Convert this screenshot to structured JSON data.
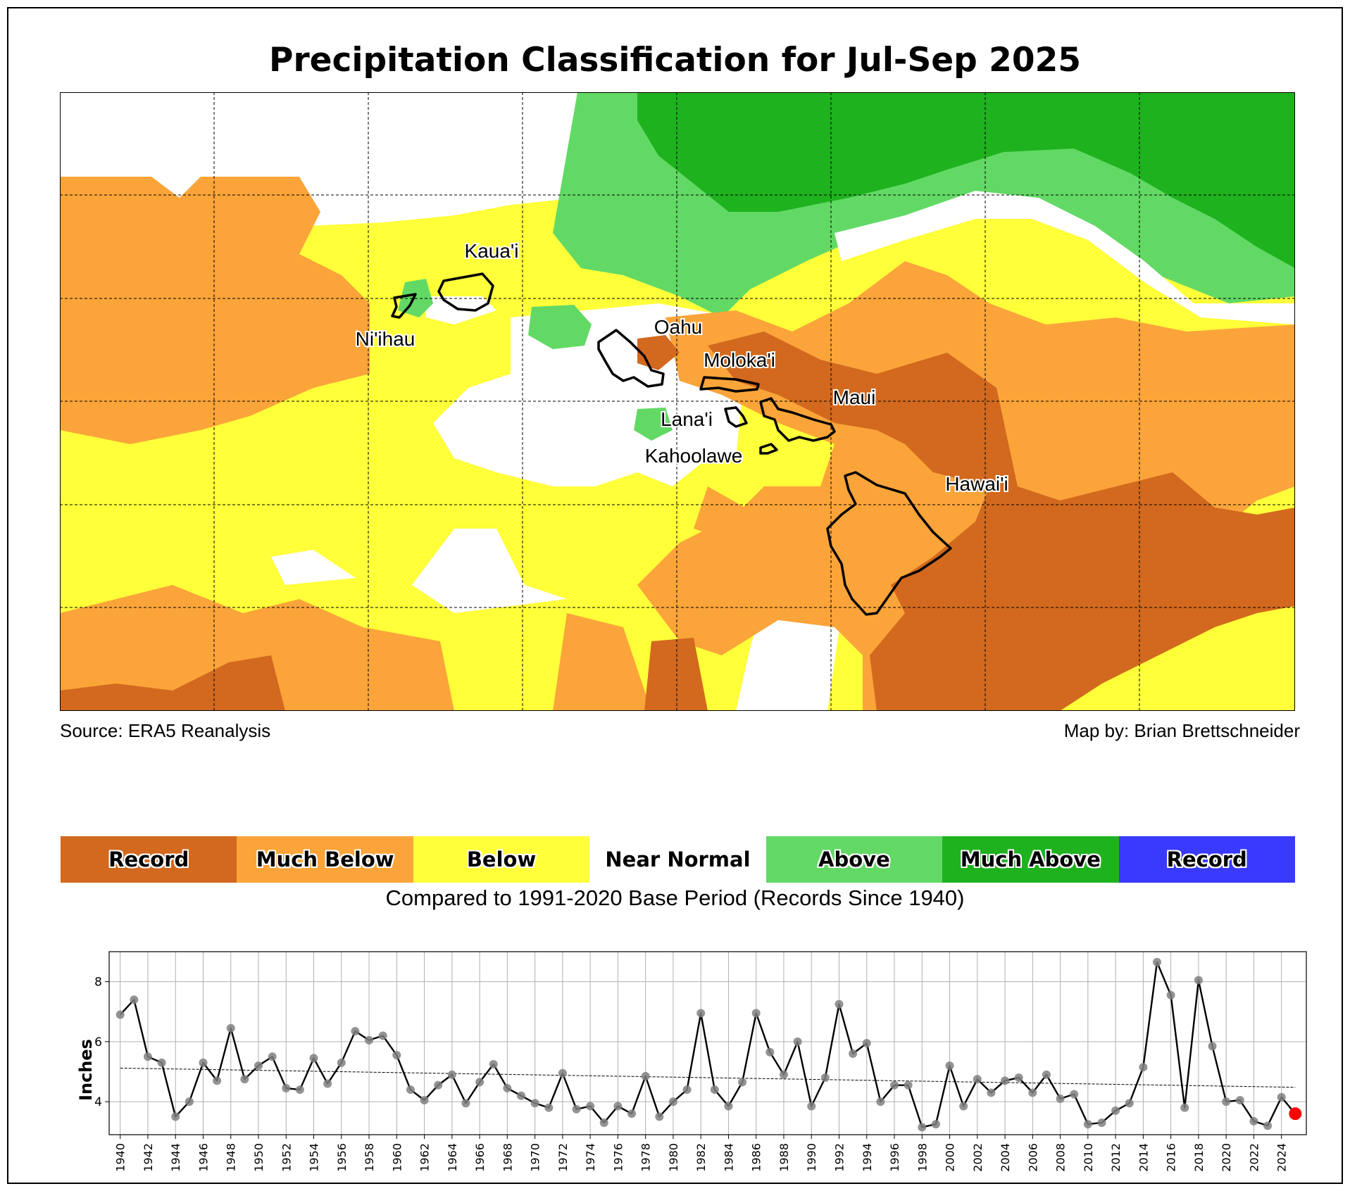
{
  "title": "Precipitation Classification for Jul-Sep 2025",
  "map": {
    "islands": [
      {
        "id": "niihau",
        "label": "Ni'ihau"
      },
      {
        "id": "kauai",
        "label": "Kaua'i"
      },
      {
        "id": "oahu",
        "label": "Oahu"
      },
      {
        "id": "molokai",
        "label": "Moloka'i"
      },
      {
        "id": "maui",
        "label": "Maui"
      },
      {
        "id": "lanai",
        "label": "Lana'i"
      },
      {
        "id": "kahoolawe",
        "label": "Kahoolawe"
      },
      {
        "id": "hawaii",
        "label": "Hawai'i"
      }
    ],
    "class_colors": {
      "record_low": "#d2691e",
      "much_below": "#fba43a",
      "below": "#ffff3a",
      "near_normal": "#ffffff",
      "above": "#62d965",
      "much_above": "#1fb21f",
      "record_high": "#3a3aff"
    }
  },
  "source_left": "Source: ERA5 Reanalysis",
  "source_right": "Map by: Brian Brettschneider",
  "legend": {
    "items": [
      {
        "label": "Record",
        "color": "#d2691e"
      },
      {
        "label": "Much Below",
        "color": "#fba43a"
      },
      {
        "label": "Below",
        "color": "#ffff3a"
      },
      {
        "label": "Near Normal",
        "color": "#ffffff"
      },
      {
        "label": "Above",
        "color": "#62d965"
      },
      {
        "label": "Much Above",
        "color": "#1fb21f"
      },
      {
        "label": "Record",
        "color": "#3a3aff"
      }
    ],
    "caption": "Compared to 1991-2020 Base Period   (Records Since 1940)"
  },
  "chart_data": {
    "type": "line",
    "ylabel": "Inches",
    "xlabel": "",
    "ylim": [
      2.9,
      9.0
    ],
    "yticks": [
      4,
      6,
      8
    ],
    "xticks": [
      1940,
      1942,
      1944,
      1946,
      1948,
      1950,
      1952,
      1954,
      1956,
      1958,
      1960,
      1962,
      1964,
      1966,
      1968,
      1970,
      1972,
      1974,
      1976,
      1978,
      1980,
      1982,
      1984,
      1986,
      1988,
      1990,
      1992,
      1994,
      1996,
      1998,
      2000,
      2002,
      2004,
      2006,
      2008,
      2010,
      2012,
      2014,
      2016,
      2018,
      2020,
      2022,
      2024
    ],
    "grid": true,
    "x": [
      1940,
      1941,
      1942,
      1943,
      1944,
      1945,
      1946,
      1947,
      1948,
      1949,
      1950,
      1951,
      1952,
      1953,
      1954,
      1955,
      1956,
      1957,
      1958,
      1959,
      1960,
      1961,
      1962,
      1963,
      1964,
      1965,
      1966,
      1967,
      1968,
      1969,
      1970,
      1971,
      1972,
      1973,
      1974,
      1975,
      1976,
      1977,
      1978,
      1979,
      1980,
      1981,
      1982,
      1983,
      1984,
      1985,
      1986,
      1987,
      1988,
      1989,
      1990,
      1991,
      1992,
      1993,
      1994,
      1995,
      1996,
      1997,
      1998,
      1999,
      2000,
      2001,
      2002,
      2003,
      2004,
      2005,
      2006,
      2007,
      2008,
      2009,
      2010,
      2011,
      2012,
      2013,
      2014,
      2015,
      2016,
      2017,
      2018,
      2019,
      2020,
      2021,
      2022,
      2023,
      2024,
      2025
    ],
    "series": [
      {
        "values": [
          6.9,
          7.4,
          5.5,
          5.3,
          3.5,
          4.0,
          5.3,
          4.7,
          6.45,
          4.75,
          5.2,
          5.5,
          4.45,
          4.4,
          5.45,
          4.6,
          5.3,
          6.35,
          6.05,
          6.2,
          5.55,
          4.4,
          4.05,
          4.55,
          4.9,
          3.95,
          4.65,
          5.25,
          4.45,
          4.2,
          3.95,
          3.8,
          4.95,
          3.75,
          3.85,
          3.3,
          3.85,
          3.6,
          4.85,
          3.5,
          4.0,
          4.4,
          6.95,
          4.4,
          3.85,
          4.65,
          6.95,
          5.65,
          4.9,
          6.0,
          3.85,
          4.8,
          7.25,
          5.6,
          5.95,
          4.0,
          4.55,
          4.55,
          3.15,
          3.25,
          5.2,
          3.85,
          4.75,
          4.3,
          4.7,
          4.8,
          4.3,
          4.9,
          4.1,
          4.25,
          3.25,
          3.3,
          3.7,
          3.95,
          5.15,
          8.65,
          7.55,
          3.8,
          8.05,
          5.85,
          4.0,
          4.05,
          3.35,
          3.2,
          4.15,
          3.6
        ]
      }
    ],
    "trend": {
      "start": 5.12,
      "end": 4.48
    },
    "highlight_last_color": "#ff0000"
  }
}
